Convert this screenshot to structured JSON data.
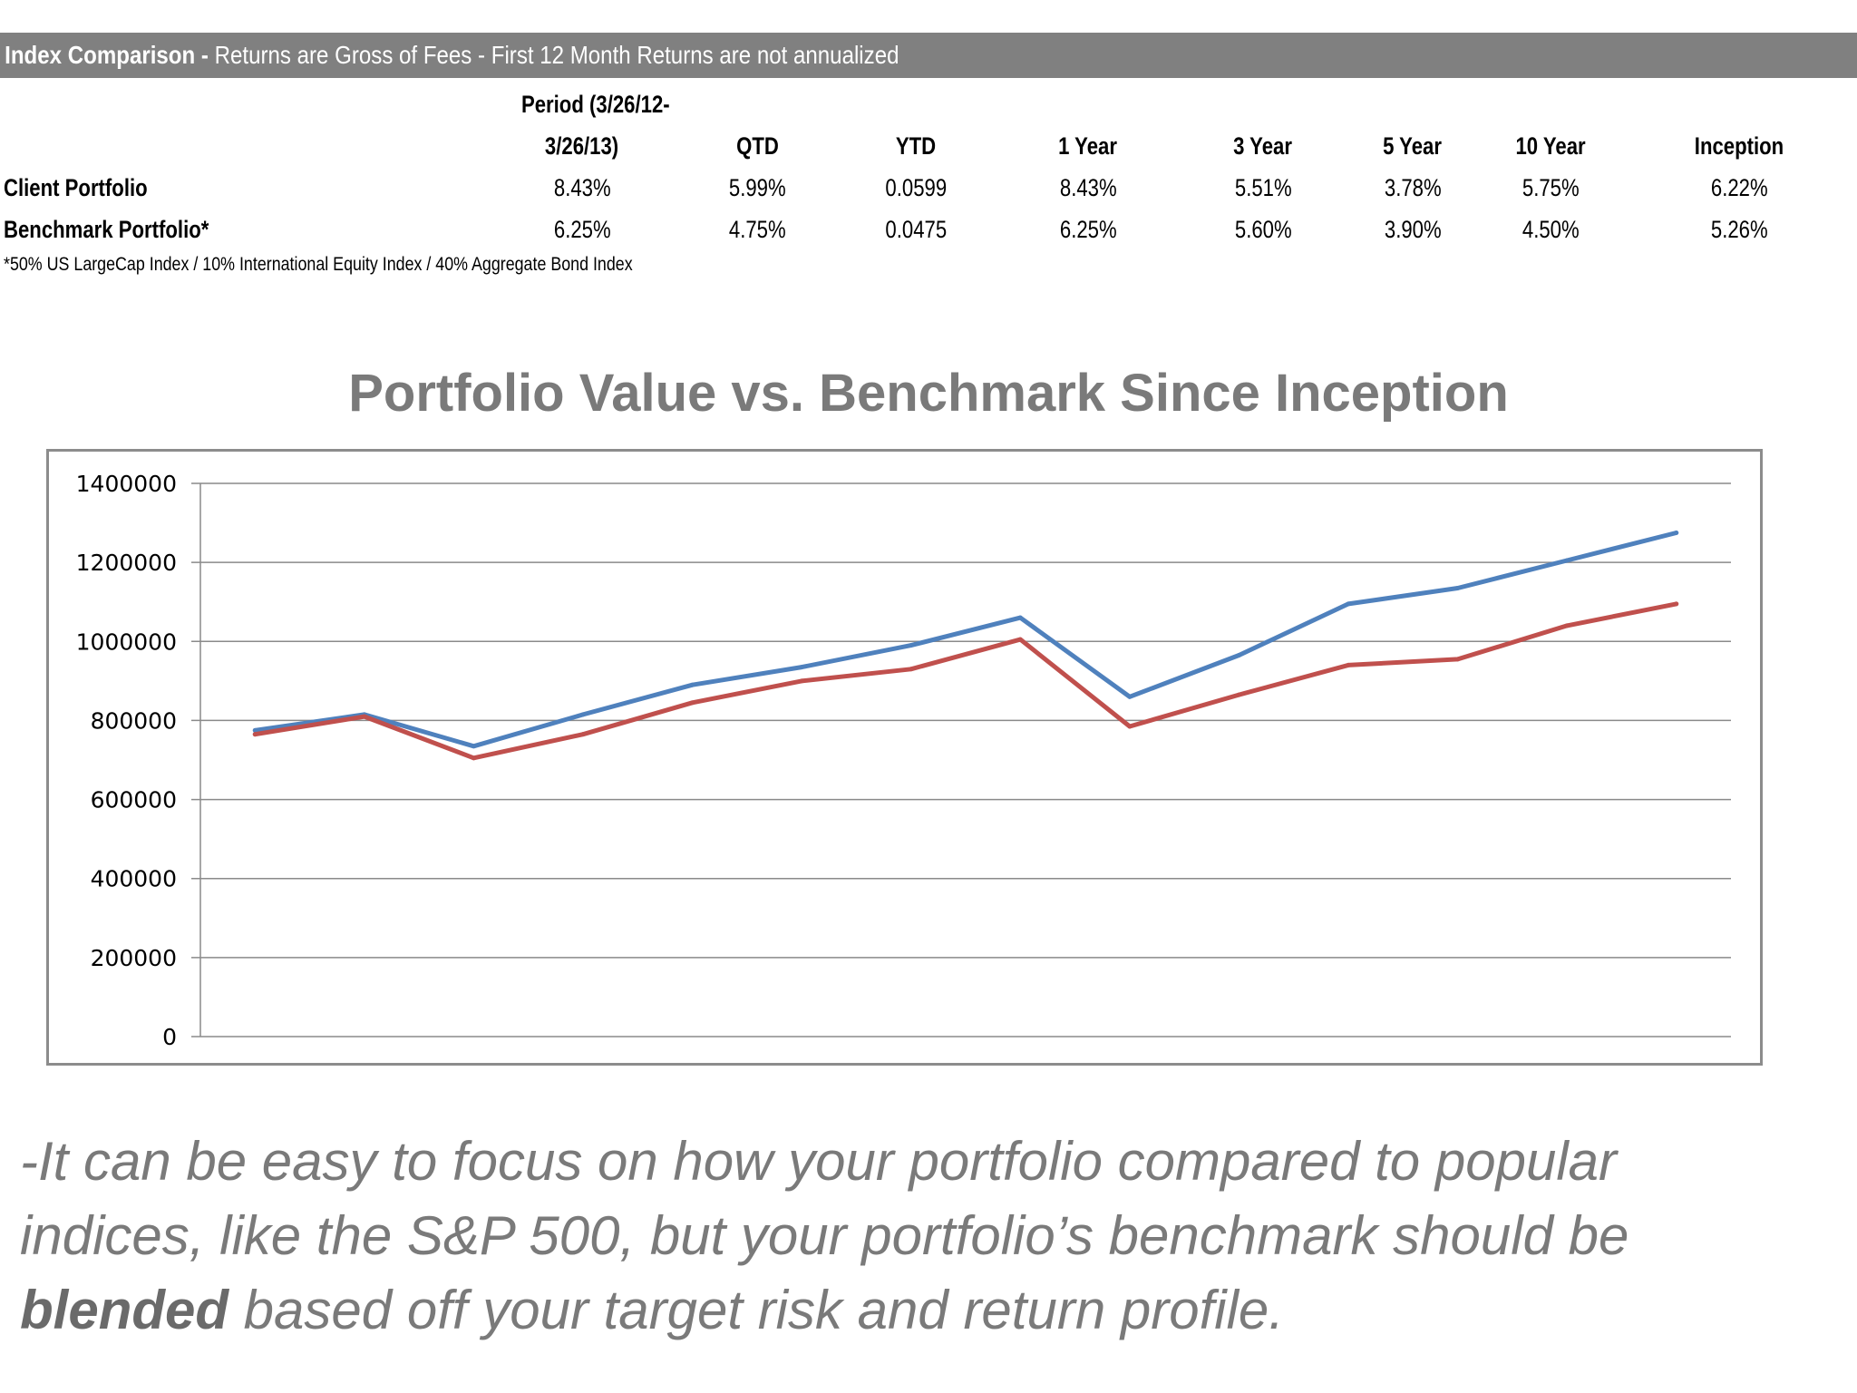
{
  "header": {
    "title_bold": "Index Comparison -",
    "title_rest": " Returns are Gross of Fees - First 12 Month Returns are not annualized"
  },
  "table": {
    "columns": [
      {
        "line1": "Period (3/26/12-",
        "line2": "3/26/13)"
      },
      {
        "line1": "",
        "line2": "QTD"
      },
      {
        "line1": "",
        "line2": "YTD"
      },
      {
        "line1": "",
        "line2": "1 Year"
      },
      {
        "line1": "",
        "line2": "3 Year"
      },
      {
        "line1": "",
        "line2": "5 Year"
      },
      {
        "line1": "",
        "line2": "10 Year"
      },
      {
        "line1": "",
        "line2": "Inception"
      }
    ],
    "rows": [
      {
        "label": "Client Portfolio",
        "values": [
          "8.43%",
          "5.99%",
          "0.0599",
          "8.43%",
          "5.51%",
          "3.78%",
          "5.75%",
          "6.22%"
        ]
      },
      {
        "label": "Benchmark Portfolio*",
        "values": [
          "6.25%",
          "4.75%",
          "0.0475",
          "6.25%",
          "5.60%",
          "3.90%",
          "4.50%",
          "5.26%"
        ]
      }
    ],
    "footnote": "*50% US LargeCap Index / 10% International Equity Index / 40% Aggregate Bond Index"
  },
  "chart_data": {
    "type": "line",
    "title": "Portfolio Value vs. Benchmark Since Inception",
    "xlabel": "",
    "ylabel": "",
    "ylim": [
      0,
      1400000
    ],
    "yticks": [
      "0",
      "200000",
      "400000",
      "600000",
      "800000",
      "1000000",
      "1200000",
      "1400000"
    ],
    "grid": true,
    "legend": "none",
    "x": [
      1,
      2,
      3,
      4,
      5,
      6,
      7,
      8,
      9,
      10,
      11,
      12,
      13,
      14
    ],
    "series": [
      {
        "color": "#4f81bd",
        "values": [
          775000,
          815000,
          735000,
          815000,
          890000,
          935000,
          990000,
          1060000,
          860000,
          965000,
          1095000,
          1135000,
          1205000,
          1275000
        ]
      },
      {
        "color": "#c0504d",
        "values": [
          765000,
          810000,
          705000,
          765000,
          845000,
          900000,
          930000,
          1005000,
          785000,
          865000,
          940000,
          955000,
          1040000,
          1095000
        ]
      }
    ]
  },
  "caption": {
    "line1": "-It can be easy to focus on how your portfolio compared to popular",
    "line2": "indices, like the S&P 500, but your portfolio’s benchmark should be",
    "line3_bold": "blended",
    "line3_rest": " based off your target risk and return profile."
  }
}
